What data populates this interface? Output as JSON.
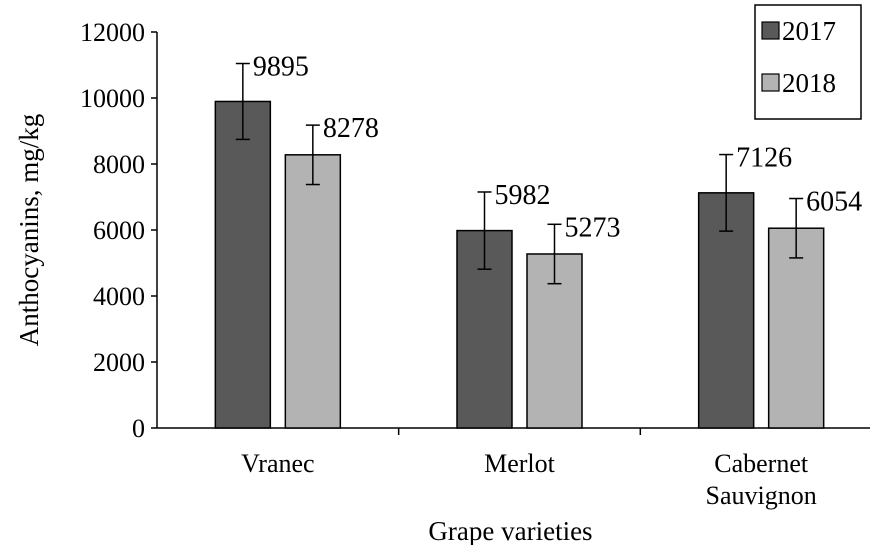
{
  "chart_data": {
    "type": "bar",
    "title": "",
    "xlabel": "Grape varieties",
    "ylabel": "Anthocyanins, mg/kg",
    "ylim": [
      0,
      12000
    ],
    "yticks": [
      0,
      2000,
      4000,
      6000,
      8000,
      10000,
      12000
    ],
    "categories": [
      [
        "Vranec"
      ],
      [
        "Merlot"
      ],
      [
        "Cabernet",
        "Sauvignon"
      ]
    ],
    "series": [
      {
        "name": "2017",
        "color": "#595959",
        "values": [
          9895,
          5982,
          7126
        ],
        "errors": [
          1150,
          1170,
          1160
        ]
      },
      {
        "name": "2018",
        "color": "#b3b3b3",
        "values": [
          8278,
          5273,
          6054
        ],
        "errors": [
          900,
          900,
          900
        ]
      }
    ],
    "legend": "top-right",
    "grid": false
  }
}
